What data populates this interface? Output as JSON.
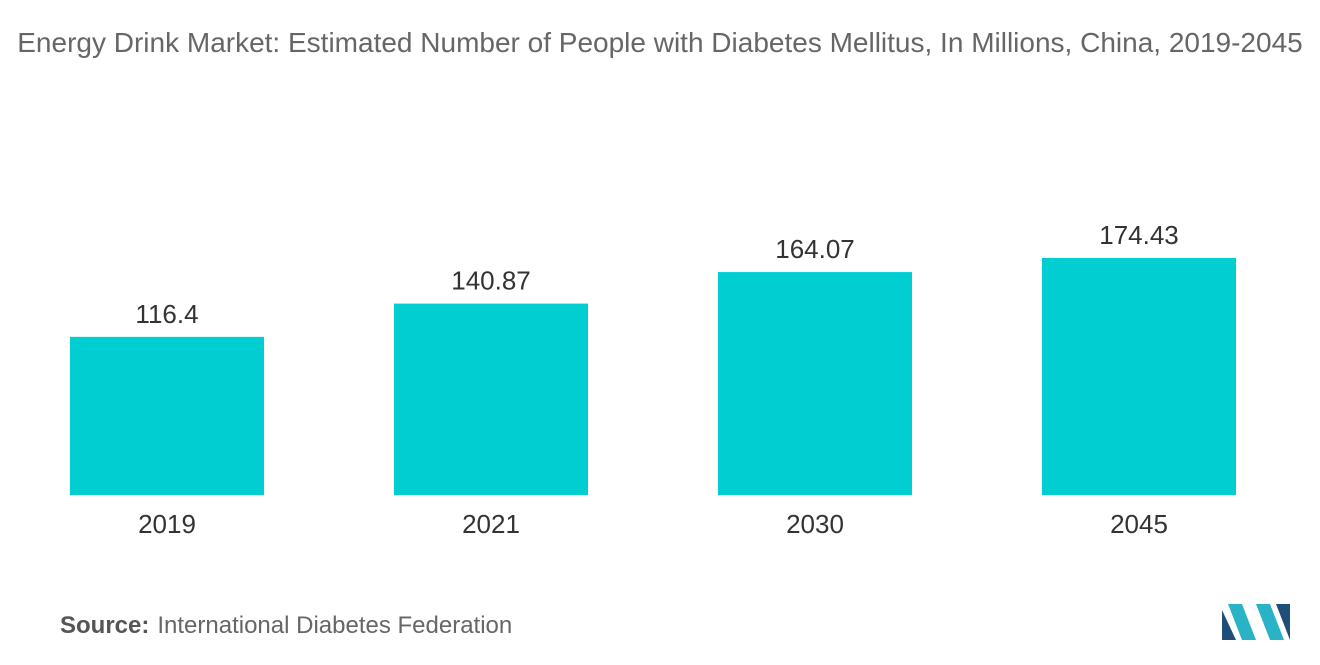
{
  "title": "Energy Drink Market: Estimated Number of People with Diabetes Mellitus, In Millions, China, 2019-2045",
  "chart_data": {
    "type": "bar",
    "title": "Energy Drink Market: Estimated Number of People with Diabetes Mellitus, In Millions, China, 2019-2045",
    "categories": [
      "2019",
      "2021",
      "2030",
      "2045"
    ],
    "values": [
      116.4,
      140.87,
      164.07,
      174.43
    ],
    "value_labels": [
      "116.4",
      "140.87",
      "164.07",
      "174.43"
    ],
    "xlabel": "",
    "ylabel": "",
    "ylim": [
      0,
      174.43
    ],
    "grid": false,
    "legend": "none",
    "bar_color": "#00CED1"
  },
  "source": {
    "label": "Source:",
    "text": "International Diabetes Federation"
  },
  "logo": {
    "icon": "mordor-intelligence-logo",
    "colors": [
      "#1F4E79",
      "#2AB3C6"
    ]
  }
}
